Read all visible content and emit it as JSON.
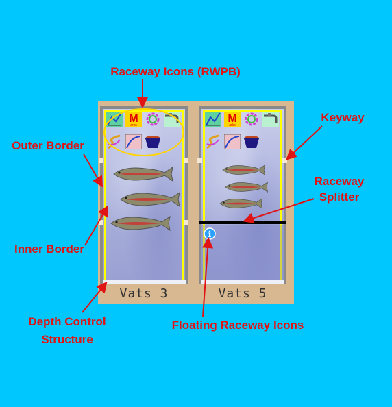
{
  "annotations": {
    "raceway_icons": "Raceway Icons (RWPB)",
    "keyway": "Keyway",
    "outer_border": "Outer Border",
    "raceway_splitter_line1": "Raceway",
    "raceway_splitter_line2": "Splitter",
    "inner_border": "Inner Border",
    "depth_control_line1": "Depth Control",
    "depth_control_line2": "Structure",
    "floating_icons": "Floating Raceway Icons"
  },
  "vats": [
    {
      "name": "Vats 3",
      "fish_count": 3
    },
    {
      "name": "Vats 5",
      "fish_count": 3
    }
  ],
  "icon_labels": {
    "marks_icon_text": "M",
    "marks_icon_sub": "arks",
    "info_icon_glyph": "i"
  },
  "colors": {
    "background": "#00c8ff",
    "annotation": "#e01414",
    "panel": "#d8b890",
    "inner_border": "#ffff00",
    "outer_border": "#888888",
    "splitter": "#000000"
  }
}
